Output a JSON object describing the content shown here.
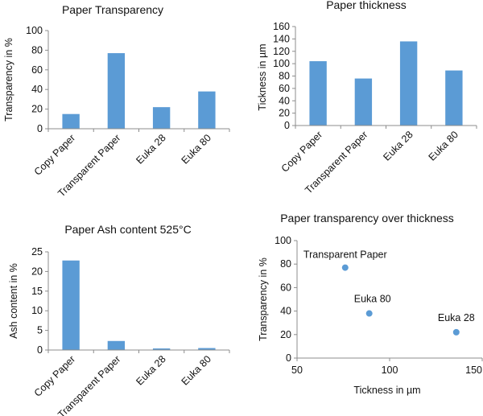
{
  "chart_data": [
    {
      "type": "bar",
      "title": "Paper Transparency",
      "categories": [
        "Copy Paper",
        "Transparent Paper",
        "Euka 28",
        "Euka 80"
      ],
      "values": [
        15,
        77,
        22,
        38
      ],
      "xlabel": "",
      "ylabel": "Transparency in %",
      "ylim": [
        0,
        100
      ],
      "yticks": [
        0,
        20,
        40,
        60,
        80,
        100
      ],
      "bar_color": "#5B9BD5",
      "grid": false,
      "legend": "none"
    },
    {
      "type": "bar",
      "title": "Paper thickness",
      "categories": [
        "Copy Paper",
        "Transparent Paper",
        "Euka 28",
        "Euka 80"
      ],
      "values": [
        104,
        76,
        136,
        89
      ],
      "xlabel": "",
      "ylabel": "Tickness in µm",
      "ylim": [
        0,
        160
      ],
      "yticks": [
        0,
        20,
        40,
        60,
        80,
        100,
        120,
        140,
        160
      ],
      "bar_color": "#5B9BD5",
      "grid": false,
      "legend": "none"
    },
    {
      "type": "bar",
      "title": "Paper Ash content 525°C",
      "categories": [
        "Copy Paper",
        "Transparent Paper",
        "Euka 28",
        "Euka 80"
      ],
      "values": [
        22.8,
        2.3,
        0.4,
        0.5
      ],
      "xlabel": "",
      "ylabel": "Ash content in %",
      "ylim": [
        0,
        25
      ],
      "yticks": [
        0,
        5,
        10,
        15,
        20,
        25
      ],
      "bar_color": "#5B9BD5",
      "grid": false,
      "legend": "none"
    },
    {
      "type": "scatter",
      "title": "Paper transparency over thickness",
      "points": [
        {
          "label": "Transparent Paper",
          "x": 76,
          "y": 77
        },
        {
          "label": "Euka 80",
          "x": 89,
          "y": 38
        },
        {
          "label": "Euka 28",
          "x": 136,
          "y": 22
        }
      ],
      "xlabel": "Tickness in µm",
      "ylabel": "Transparency in %",
      "xlim": [
        50,
        150
      ],
      "xticks": [
        50,
        100,
        150
      ],
      "ylim": [
        0,
        100
      ],
      "yticks": [
        0,
        20,
        40,
        60,
        80,
        100
      ],
      "point_color": "#5B9BD5",
      "grid": false,
      "legend": "none"
    }
  ]
}
